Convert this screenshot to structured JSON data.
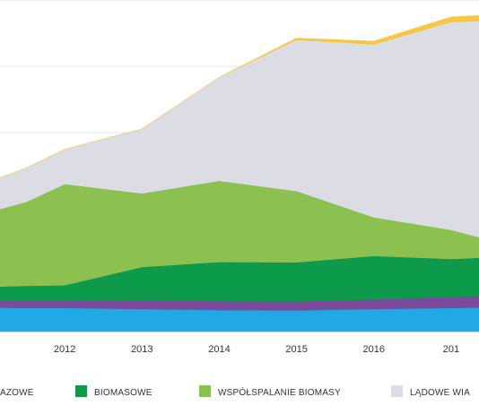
{
  "chart_data": {
    "type": "area",
    "stacked": true,
    "x": [
      "2011",
      "2011.5",
      "2012",
      "2013",
      "2014",
      "2015",
      "2016",
      "2017",
      "2017.5"
    ],
    "x_tick_labels": [
      "2012",
      "2013",
      "2014",
      "2015",
      "2016",
      "201"
    ],
    "ylim": [
      0,
      100
    ],
    "grid": true,
    "legend_placement": "bottom",
    "series": [
      {
        "name": "",
        "color": "#20a9e4",
        "values": [
          7.3,
          7.1,
          7.1,
          6.8,
          6.5,
          6.4,
          6.8,
          7.1,
          7.3
        ]
      },
      {
        "name": "",
        "color": "#7a4a9d",
        "values": [
          2.2,
          2.2,
          2.2,
          2.7,
          2.7,
          2.7,
          2.9,
          3.4,
          3.5
        ]
      },
      {
        "name": "BIOMASOWE",
        "color": "#0e9a4b",
        "values": [
          4.0,
          4.5,
          4.7,
          10.0,
          11.8,
          11.8,
          13.1,
          11.4,
          11.6
        ]
      },
      {
        "name": "WSPÓŁSPALANIE BIOMASY",
        "color": "#8cc152",
        "values": [
          22.5,
          25.3,
          30.5,
          22.2,
          24.5,
          21.5,
          11.7,
          8.8,
          5.2
        ]
      },
      {
        "name": "LĄDOWE WIA",
        "color": "#dcdde4",
        "values": [
          9.0,
          10.2,
          10.5,
          19.4,
          31.2,
          45.6,
          52.1,
          62.7,
          66.1
        ]
      },
      {
        "name": "",
        "color": "#f4c842",
        "values": [
          0,
          0,
          0,
          0,
          0,
          0.5,
          1.0,
          1.5,
          1.8
        ]
      }
    ],
    "legend": [
      {
        "label": "AZOWE",
        "color": ""
      },
      {
        "label": "BIOMASOWE",
        "color": "#0e9a4b"
      },
      {
        "label": "WSPÓŁSPALANIE BIOMASY",
        "color": "#8cc152"
      },
      {
        "label": "LĄDOWE WIA",
        "color": "#dcdde4"
      }
    ]
  }
}
